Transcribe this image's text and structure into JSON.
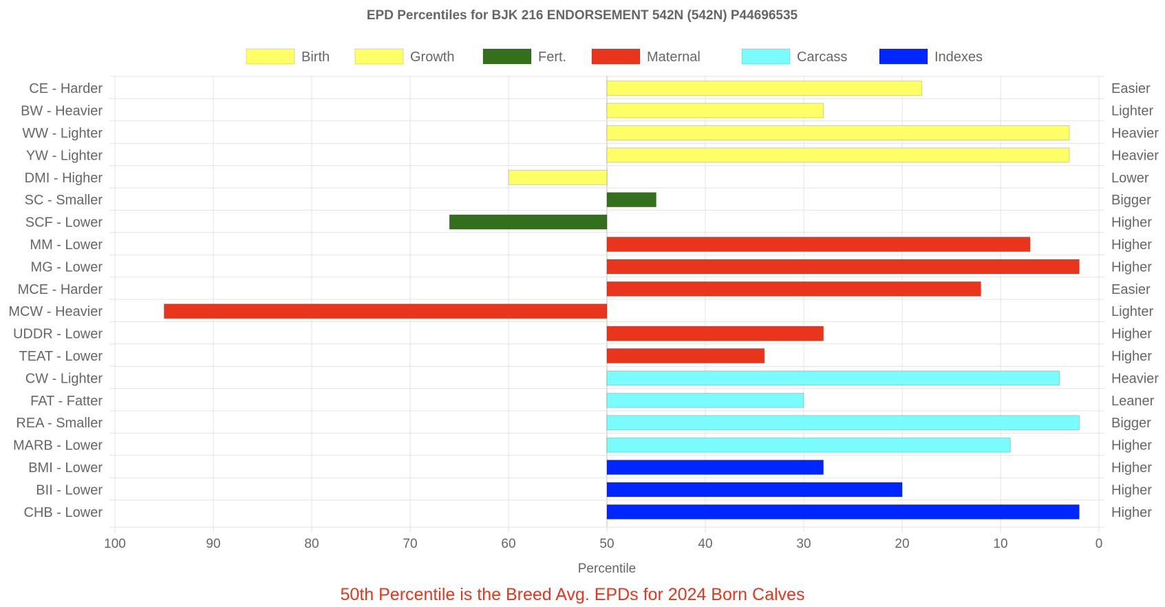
{
  "chart_data": {
    "type": "bar",
    "orientation": "horizontal",
    "title": "EPD Percentiles for BJK 216 ENDORSEMENT 542N (542N) P44696535",
    "xlabel": "Percentile",
    "xlim": [
      100,
      0
    ],
    "baseline": 50,
    "x_ticks": [
      "100",
      "90",
      "80",
      "70",
      "60",
      "50",
      "40",
      "30",
      "20",
      "10",
      "0"
    ],
    "grid": true,
    "legend_position": "top",
    "legend": [
      {
        "name": "Birth",
        "color": "#ffff66"
      },
      {
        "name": "Growth",
        "color": "#ffff66"
      },
      {
        "name": "Fert.",
        "color": "#33701e"
      },
      {
        "name": "Maternal",
        "color": "#e8351b"
      },
      {
        "name": "Carcass",
        "color": "#7afcfc"
      },
      {
        "name": "Indexes",
        "color": "#0026ff"
      }
    ],
    "categories": [
      "CE - Harder",
      "BW - Heavier",
      "WW - Lighter",
      "YW - Lighter",
      "DMI - Higher",
      "SC - Smaller",
      "SCF - Lower",
      "MM - Lower",
      "MG - Lower",
      "MCE - Harder",
      "MCW - Heavier",
      "UDDR - Lower",
      "TEAT - Lower",
      "CW - Lighter",
      "FAT - Fatter",
      "REA - Smaller",
      "MARB - Lower",
      "BMI - Lower",
      "BII - Lower",
      "CHB - Lower"
    ],
    "right_labels": [
      "Easier",
      "Lighter",
      "Heavier",
      "Heavier",
      "Lower",
      "Bigger",
      "Higher",
      "Higher",
      "Higher",
      "Easier",
      "Lighter",
      "Higher",
      "Higher",
      "Heavier",
      "Leaner",
      "Bigger",
      "Higher",
      "Higher",
      "Higher",
      "Higher"
    ],
    "values": [
      18,
      28,
      3,
      3,
      60,
      45,
      66,
      7,
      2,
      12,
      95,
      28,
      34,
      4,
      30,
      2,
      9,
      28,
      20,
      2
    ],
    "groups": [
      "Birth",
      "Birth",
      "Growth",
      "Growth",
      "Growth",
      "Fert.",
      "Fert.",
      "Maternal",
      "Maternal",
      "Maternal",
      "Maternal",
      "Maternal",
      "Maternal",
      "Carcass",
      "Carcass",
      "Carcass",
      "Carcass",
      "Indexes",
      "Indexes",
      "Indexes"
    ]
  },
  "footnote": "50th Percentile is the Breed Avg. EPDs for 2024 Born Calves"
}
